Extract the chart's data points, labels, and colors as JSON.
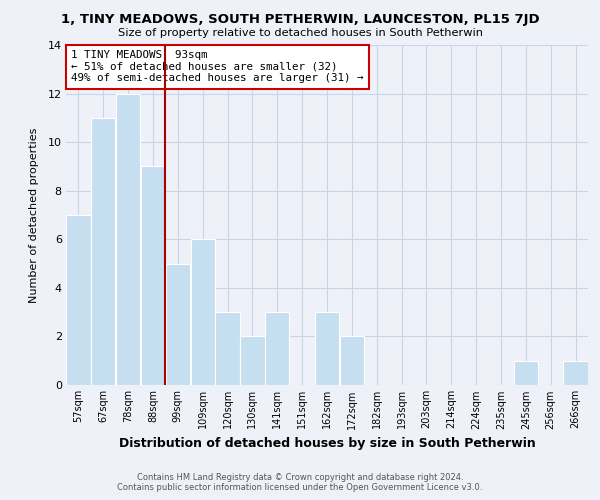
{
  "title": "1, TINY MEADOWS, SOUTH PETHERWIN, LAUNCESTON, PL15 7JD",
  "subtitle": "Size of property relative to detached houses in South Petherwin",
  "xlabel": "Distribution of detached houses by size in South Petherwin",
  "ylabel": "Number of detached properties",
  "bin_labels": [
    "57sqm",
    "67sqm",
    "78sqm",
    "88sqm",
    "99sqm",
    "109sqm",
    "120sqm",
    "130sqm",
    "141sqm",
    "151sqm",
    "162sqm",
    "172sqm",
    "182sqm",
    "193sqm",
    "203sqm",
    "214sqm",
    "224sqm",
    "235sqm",
    "245sqm",
    "256sqm",
    "266sqm"
  ],
  "bar_heights": [
    7,
    11,
    12,
    9,
    5,
    6,
    3,
    2,
    3,
    0,
    3,
    2,
    0,
    0,
    0,
    0,
    0,
    0,
    1,
    0,
    1
  ],
  "bar_color": "#c5dff0",
  "bar_edge_color": "#ffffff",
  "grid_color": "#c8d4e8",
  "background_color": "#eef2f8",
  "property_line_color": "#aa0000",
  "annotation_box_text": "1 TINY MEADOWS: 93sqm\n← 51% of detached houses are smaller (32)\n49% of semi-detached houses are larger (31) →",
  "annotation_box_facecolor": "#ffffff",
  "annotation_box_edgecolor": "#cc0000",
  "footer_line1": "Contains HM Land Registry data © Crown copyright and database right 2024.",
  "footer_line2": "Contains public sector information licensed under the Open Government Licence v3.0.",
  "ylim": [
    0,
    14
  ],
  "property_bar_index": 3,
  "num_bins": 21
}
